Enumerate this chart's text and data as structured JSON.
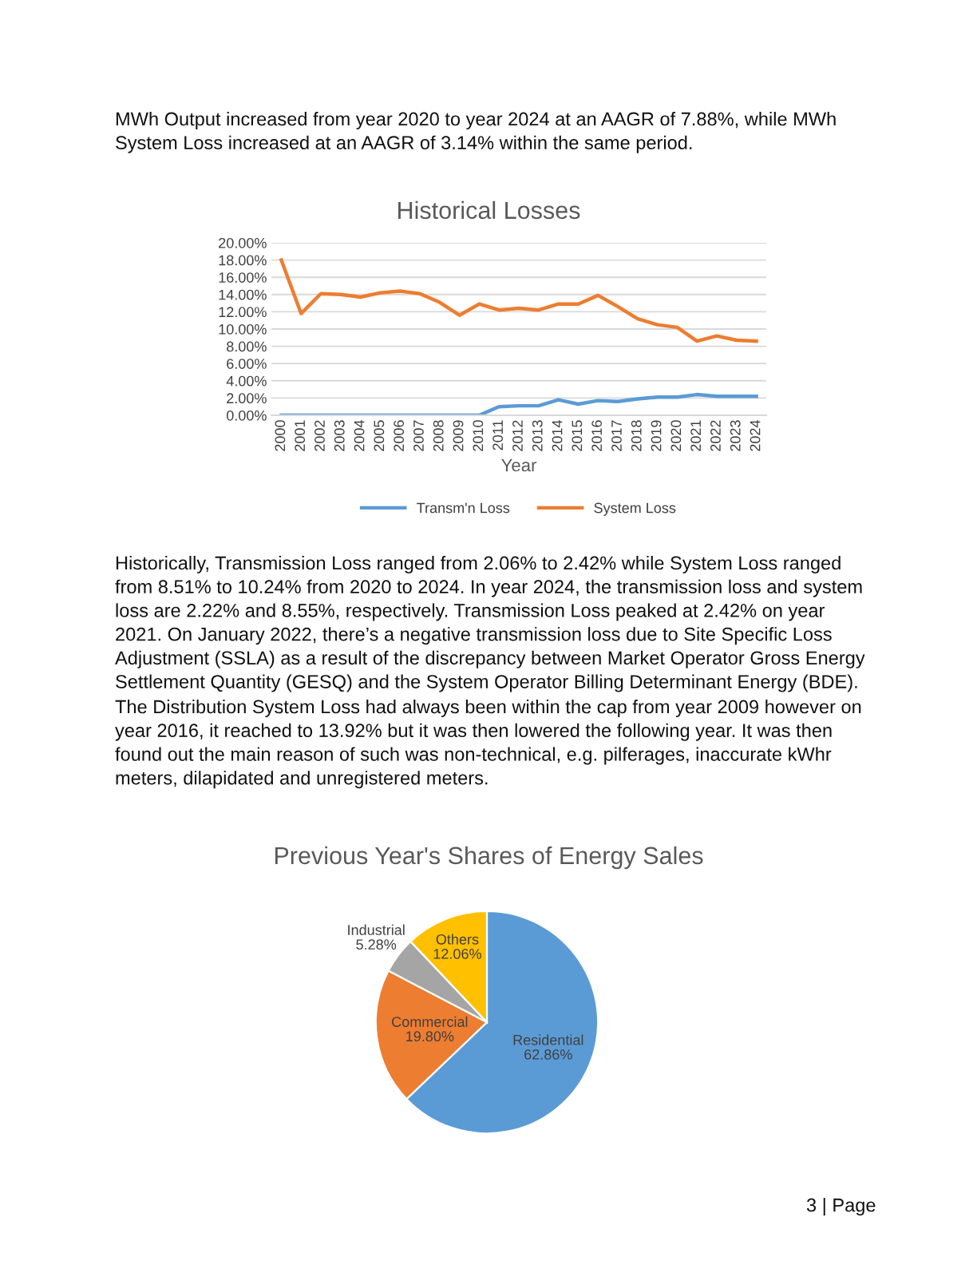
{
  "chart_data": [
    {
      "type": "line",
      "title": "Historical Losses",
      "xlabel": "Year",
      "categories": [
        "2000",
        "2001",
        "2002",
        "2003",
        "2004",
        "2005",
        "2006",
        "2007",
        "2008",
        "2009",
        "2010",
        "2011",
        "2012",
        "2013",
        "2014",
        "2015",
        "2016",
        "2017",
        "2018",
        "2019",
        "2020",
        "2021",
        "2022",
        "2023",
        "2024"
      ],
      "series": [
        {
          "name": "Transm'n Loss",
          "color": "#5b9bd5",
          "values": [
            0,
            0,
            0,
            0,
            0,
            0,
            0,
            0,
            0,
            0,
            0,
            1.0,
            1.1,
            1.1,
            1.8,
            1.3,
            1.7,
            1.6,
            1.9,
            2.1,
            2.1,
            2.4,
            2.2,
            2.2,
            2.2
          ]
        },
        {
          "name": "System Loss",
          "color": "#ed7d31",
          "values": [
            18.0,
            11.8,
            14.1,
            14.0,
            13.7,
            14.2,
            14.4,
            14.1,
            13.1,
            11.6,
            12.9,
            12.2,
            12.4,
            12.2,
            12.9,
            12.9,
            13.9,
            12.6,
            11.2,
            10.5,
            10.2,
            8.6,
            9.2,
            8.7,
            8.6
          ]
        }
      ],
      "ylim": [
        0,
        20
      ],
      "yticks": [
        {
          "value": 0,
          "label": "0.00%"
        },
        {
          "value": 2,
          "label": "2.00%"
        },
        {
          "value": 4,
          "label": "4.00%"
        },
        {
          "value": 6,
          "label": "6.00%"
        },
        {
          "value": 8,
          "label": "8.00%"
        },
        {
          "value": 10,
          "label": "10.00%"
        },
        {
          "value": 12,
          "label": "12.00%"
        },
        {
          "value": 14,
          "label": "14.00%"
        },
        {
          "value": 16,
          "label": "16.00%"
        },
        {
          "value": 18,
          "label": "18.00%"
        },
        {
          "value": 20,
          "label": "20.00%"
        }
      ],
      "grid": "y",
      "legend": "bottom",
      "marker": "none",
      "line_style": "solid",
      "annotations": [
        "MWh Output increased from year 2020 to year 2024 at an AAGR of 7.88%, while MWh System Loss increased at an AAGR of 3.14% within the same period.",
        "Historically, Transmission Loss ranged from 2.06% to 2.42% while System Loss ranged from 8.51% to 10.24% from 2020 to 2024. In year 2024, the transmission loss and system loss are 2.22% and 8.55%, respectively. Transmission Loss peaked at 2.42% on year 2021. On January 2022, there’s a negative transmission loss due to Site Specific Loss Adjustment (SSLA) as a result of the discrepancy between Market Operator Gross Energy Settlement Quantity (GESQ) and the System Operator Billing Determinant Energy (BDE).",
        "The Distribution System Loss had always been within the cap from year 2009 however on year 2016, it reached to 13.92% but it was then lowered the following year. It was then found out the main reason of such was non-technical, e.g. pilferages, inaccurate kWhr meters, dilapidated and unregistered meters."
      ]
    },
    {
      "type": "pie",
      "title": "Previous Year's Shares of Energy Sales",
      "categories": [
        "Residential",
        "Commercial",
        "Industrial",
        "Others"
      ],
      "values": [
        62.86,
        19.8,
        5.28,
        12.06
      ],
      "colors": [
        "#5b9bd5",
        "#ed7d31",
        "#a5a5a5",
        "#ffc000"
      ],
      "value_labels": [
        "62.86%",
        "19.80%",
        "5.28%",
        "12.06%"
      ],
      "annotations": [
        "3 | Page"
      ]
    }
  ]
}
